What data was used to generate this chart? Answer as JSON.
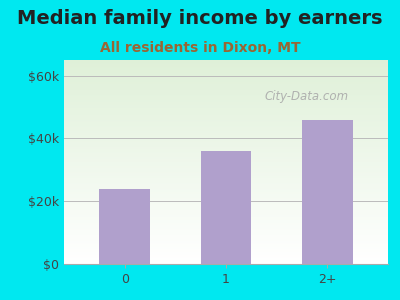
{
  "title": "Median family income by earners",
  "subtitle": "All residents in Dixon, MT",
  "categories": [
    "0",
    "1",
    "2+"
  ],
  "values": [
    24000,
    36000,
    46000
  ],
  "bar_color": "#b0a0cc",
  "title_color": "#222222",
  "subtitle_color": "#996633",
  "background_outer": "#00e8f0",
  "background_inner_top": "#dff0d8",
  "background_inner_bottom": "#ffffff",
  "yticks": [
    0,
    20000,
    40000,
    60000
  ],
  "ytick_labels": [
    "$0",
    "$20k",
    "$40k",
    "$60k"
  ],
  "ylim": [
    0,
    65000
  ],
  "watermark": "City-Data.com",
  "title_fontsize": 14,
  "subtitle_fontsize": 10,
  "tick_fontsize": 9,
  "grid_color": "#bbbbbb"
}
